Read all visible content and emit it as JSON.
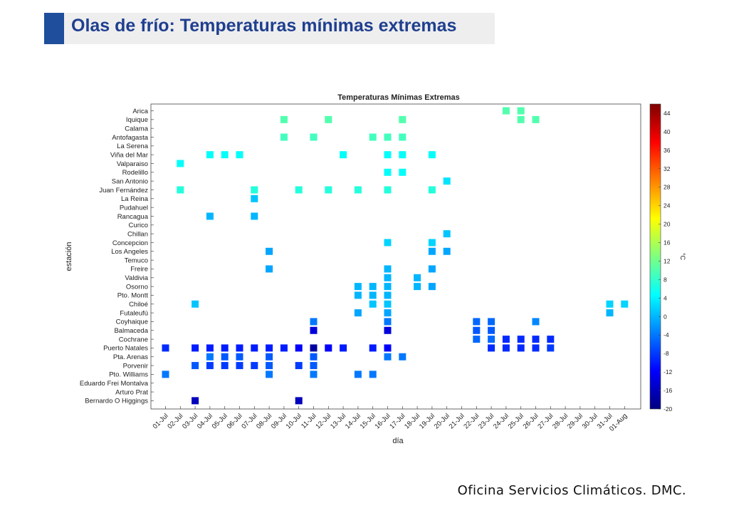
{
  "slide": {
    "title": "Olas de frío: Temperaturas mínimas extremas",
    "footer": "Oficina Servicios Climáticos. DMC."
  },
  "chart_data": {
    "type": "heatmap",
    "title": "Temperaturas Mínimas Extremas",
    "xlabel": "día",
    "ylabel": "estación",
    "colorbar_label": "°C",
    "colorbar_range": [
      -20,
      46
    ],
    "colorbar_ticks": [
      -20,
      -16,
      -12,
      -8,
      -4,
      0,
      4,
      8,
      12,
      16,
      20,
      24,
      28,
      32,
      36,
      40,
      44
    ],
    "x_categories": [
      "01-Jul",
      "02-Jul",
      "03-Jul",
      "04-Jul",
      "05-Jul",
      "06-Jul",
      "07-Jul",
      "08-Jul",
      "09-Jul",
      "10-Jul",
      "11-Jul",
      "12-Jul",
      "13-Jul",
      "14-Jul",
      "15-Jul",
      "16-Jul",
      "17-Jul",
      "18-Jul",
      "19-Jul",
      "20-Jul",
      "21-Jul",
      "22-Jul",
      "23-Jul",
      "24-Jul",
      "25-Jul",
      "26-Jul",
      "27-Jul",
      "28-Jul",
      "29-Jul",
      "30-Jul",
      "31-Jul",
      "01-Aug"
    ],
    "y_categories": [
      "Arica",
      "Iquique",
      "Calama",
      "Antofagasta",
      "La Serena",
      "Viña del Mar",
      "Valparaiso",
      "Rodelillo",
      "San Antonio",
      "Juan Fernández",
      "La Reina",
      "Pudahuel",
      "Rancagua",
      "Curico",
      "Chillan",
      "Concepcion",
      "Los Angeles",
      "Temuco",
      "Freire",
      "Valdivia",
      "Osorno",
      "Pto. Montt",
      "Chiloé",
      "Futaleufú",
      "Coyhaique",
      "Balmaceda",
      "Cochrane",
      "Puerto Natales",
      "Pta. Arenas",
      "Porvenir",
      "Pto. Williams",
      "Eduardo Frei Montalva",
      "Arturo Prat",
      "Bernardo O Higgings"
    ],
    "points": [
      {
        "station": "Arica",
        "day": "24-Jul",
        "value": 10
      },
      {
        "station": "Arica",
        "day": "25-Jul",
        "value": 10
      },
      {
        "station": "Iquique",
        "day": "09-Jul",
        "value": 10
      },
      {
        "station": "Iquique",
        "day": "12-Jul",
        "value": 10
      },
      {
        "station": "Iquique",
        "day": "17-Jul",
        "value": 10
      },
      {
        "station": "Iquique",
        "day": "25-Jul",
        "value": 10
      },
      {
        "station": "Iquique",
        "day": "26-Jul",
        "value": 10
      },
      {
        "station": "Antofagasta",
        "day": "09-Jul",
        "value": 9
      },
      {
        "station": "Antofagasta",
        "day": "11-Jul",
        "value": 9
      },
      {
        "station": "Antofagasta",
        "day": "15-Jul",
        "value": 9
      },
      {
        "station": "Antofagasta",
        "day": "16-Jul",
        "value": 9
      },
      {
        "station": "Antofagasta",
        "day": "17-Jul",
        "value": 9
      },
      {
        "station": "Viña del Mar",
        "day": "04-Jul",
        "value": 5
      },
      {
        "station": "Viña del Mar",
        "day": "05-Jul",
        "value": 5
      },
      {
        "station": "Viña del Mar",
        "day": "06-Jul",
        "value": 5
      },
      {
        "station": "Viña del Mar",
        "day": "13-Jul",
        "value": 5
      },
      {
        "station": "Viña del Mar",
        "day": "16-Jul",
        "value": 5
      },
      {
        "station": "Viña del Mar",
        "day": "17-Jul",
        "value": 5
      },
      {
        "station": "Viña del Mar",
        "day": "19-Jul",
        "value": 5
      },
      {
        "station": "Valparaiso",
        "day": "02-Jul",
        "value": 5
      },
      {
        "station": "Rodelillo",
        "day": "16-Jul",
        "value": 5
      },
      {
        "station": "Rodelillo",
        "day": "17-Jul",
        "value": 5
      },
      {
        "station": "San Antonio",
        "day": "20-Jul",
        "value": 3
      },
      {
        "station": "Juan Fernández",
        "day": "02-Jul",
        "value": 7
      },
      {
        "station": "Juan Fernández",
        "day": "07-Jul",
        "value": 7
      },
      {
        "station": "Juan Fernández",
        "day": "10-Jul",
        "value": 7
      },
      {
        "station": "Juan Fernández",
        "day": "12-Jul",
        "value": 7
      },
      {
        "station": "Juan Fernández",
        "day": "14-Jul",
        "value": 7
      },
      {
        "station": "Juan Fernández",
        "day": "16-Jul",
        "value": 7
      },
      {
        "station": "Juan Fernández",
        "day": "19-Jul",
        "value": 7
      },
      {
        "station": "La Reina",
        "day": "07-Jul",
        "value": 1
      },
      {
        "station": "Rancagua",
        "day": "04-Jul",
        "value": 0
      },
      {
        "station": "Rancagua",
        "day": "07-Jul",
        "value": 0
      },
      {
        "station": "Chillan",
        "day": "20-Jul",
        "value": 1
      },
      {
        "station": "Concepcion",
        "day": "16-Jul",
        "value": 2
      },
      {
        "station": "Concepcion",
        "day": "19-Jul",
        "value": 2
      },
      {
        "station": "Los Angeles",
        "day": "08-Jul",
        "value": -1
      },
      {
        "station": "Los Angeles",
        "day": "19-Jul",
        "value": -1
      },
      {
        "station": "Los Angeles",
        "day": "20-Jul",
        "value": -1
      },
      {
        "station": "Freire",
        "day": "08-Jul",
        "value": -1
      },
      {
        "station": "Freire",
        "day": "16-Jul",
        "value": 0
      },
      {
        "station": "Freire",
        "day": "19-Jul",
        "value": -1
      },
      {
        "station": "Valdivia",
        "day": "16-Jul",
        "value": 0
      },
      {
        "station": "Valdivia",
        "day": "18-Jul",
        "value": 0
      },
      {
        "station": "Osorno",
        "day": "14-Jul",
        "value": 0
      },
      {
        "station": "Osorno",
        "day": "15-Jul",
        "value": 0
      },
      {
        "station": "Osorno",
        "day": "16-Jul",
        "value": 0
      },
      {
        "station": "Osorno",
        "day": "18-Jul",
        "value": 0
      },
      {
        "station": "Osorno",
        "day": "19-Jul",
        "value": -1
      },
      {
        "station": "Pto. Montt",
        "day": "14-Jul",
        "value": 0
      },
      {
        "station": "Pto. Montt",
        "day": "15-Jul",
        "value": 0
      },
      {
        "station": "Pto. Montt",
        "day": "16-Jul",
        "value": 0
      },
      {
        "station": "Chiloé",
        "day": "03-Jul",
        "value": 1
      },
      {
        "station": "Chiloé",
        "day": "15-Jul",
        "value": 1
      },
      {
        "station": "Chiloé",
        "day": "16-Jul",
        "value": 1
      },
      {
        "station": "Chiloé",
        "day": "31-Jul",
        "value": 2
      },
      {
        "station": "Chiloé",
        "day": "01-Aug",
        "value": 2
      },
      {
        "station": "Futaleufú",
        "day": "14-Jul",
        "value": -1
      },
      {
        "station": "Futaleufú",
        "day": "16-Jul",
        "value": -1
      },
      {
        "station": "Futaleufú",
        "day": "31-Jul",
        "value": 0
      },
      {
        "station": "Coyhaique",
        "day": "11-Jul",
        "value": -4
      },
      {
        "station": "Coyhaique",
        "day": "16-Jul",
        "value": -4
      },
      {
        "station": "Coyhaique",
        "day": "22-Jul",
        "value": -5
      },
      {
        "station": "Coyhaique",
        "day": "23-Jul",
        "value": -5
      },
      {
        "station": "Coyhaique",
        "day": "26-Jul",
        "value": -3
      },
      {
        "station": "Balmaceda",
        "day": "11-Jul",
        "value": -14
      },
      {
        "station": "Balmaceda",
        "day": "16-Jul",
        "value": -14
      },
      {
        "station": "Balmaceda",
        "day": "22-Jul",
        "value": -6
      },
      {
        "station": "Balmaceda",
        "day": "23-Jul",
        "value": -6
      },
      {
        "station": "Cochrane",
        "day": "22-Jul",
        "value": -5
      },
      {
        "station": "Cochrane",
        "day": "23-Jul",
        "value": -5
      },
      {
        "station": "Cochrane",
        "day": "24-Jul",
        "value": -9
      },
      {
        "station": "Cochrane",
        "day": "25-Jul",
        "value": -9
      },
      {
        "station": "Cochrane",
        "day": "26-Jul",
        "value": -9
      },
      {
        "station": "Cochrane",
        "day": "27-Jul",
        "value": -9
      },
      {
        "station": "Puerto Natales",
        "day": "01-Jul",
        "value": -9
      },
      {
        "station": "Puerto Natales",
        "day": "03-Jul",
        "value": -10
      },
      {
        "station": "Puerto Natales",
        "day": "04-Jul",
        "value": -10
      },
      {
        "station": "Puerto Natales",
        "day": "05-Jul",
        "value": -10
      },
      {
        "station": "Puerto Natales",
        "day": "06-Jul",
        "value": -10
      },
      {
        "station": "Puerto Natales",
        "day": "07-Jul",
        "value": -10
      },
      {
        "station": "Puerto Natales",
        "day": "08-Jul",
        "value": -10
      },
      {
        "station": "Puerto Natales",
        "day": "09-Jul",
        "value": -10
      },
      {
        "station": "Puerto Natales",
        "day": "10-Jul",
        "value": -12
      },
      {
        "station": "Puerto Natales",
        "day": "11-Jul",
        "value": -18
      },
      {
        "station": "Puerto Natales",
        "day": "12-Jul",
        "value": -12
      },
      {
        "station": "Puerto Natales",
        "day": "13-Jul",
        "value": -10
      },
      {
        "station": "Puerto Natales",
        "day": "15-Jul",
        "value": -10
      },
      {
        "station": "Puerto Natales",
        "day": "16-Jul",
        "value": -12
      },
      {
        "station": "Puerto Natales",
        "day": "23-Jul",
        "value": -9
      },
      {
        "station": "Puerto Natales",
        "day": "24-Jul",
        "value": -9
      },
      {
        "station": "Puerto Natales",
        "day": "25-Jul",
        "value": -9
      },
      {
        "station": "Puerto Natales",
        "day": "26-Jul",
        "value": -9
      },
      {
        "station": "Puerto Natales",
        "day": "27-Jul",
        "value": -8
      },
      {
        "station": "Pta. Arenas",
        "day": "04-Jul",
        "value": -4
      },
      {
        "station": "Pta. Arenas",
        "day": "05-Jul",
        "value": -6
      },
      {
        "station": "Pta. Arenas",
        "day": "06-Jul",
        "value": -6
      },
      {
        "station": "Pta. Arenas",
        "day": "08-Jul",
        "value": -6
      },
      {
        "station": "Pta. Arenas",
        "day": "11-Jul",
        "value": -6
      },
      {
        "station": "Pta. Arenas",
        "day": "16-Jul",
        "value": -4
      },
      {
        "station": "Pta. Arenas",
        "day": "17-Jul",
        "value": -4
      },
      {
        "station": "Porvenir",
        "day": "03-Jul",
        "value": -6
      },
      {
        "station": "Porvenir",
        "day": "04-Jul",
        "value": -8
      },
      {
        "station": "Porvenir",
        "day": "05-Jul",
        "value": -8
      },
      {
        "station": "Porvenir",
        "day": "06-Jul",
        "value": -8
      },
      {
        "station": "Porvenir",
        "day": "07-Jul",
        "value": -8
      },
      {
        "station": "Porvenir",
        "day": "08-Jul",
        "value": -6
      },
      {
        "station": "Porvenir",
        "day": "10-Jul",
        "value": -8
      },
      {
        "station": "Porvenir",
        "day": "11-Jul",
        "value": -6
      },
      {
        "station": "Pto. Williams",
        "day": "01-Jul",
        "value": -4
      },
      {
        "station": "Pto. Williams",
        "day": "08-Jul",
        "value": -4
      },
      {
        "station": "Pto. Williams",
        "day": "11-Jul",
        "value": -4
      },
      {
        "station": "Pto. Williams",
        "day": "14-Jul",
        "value": -4
      },
      {
        "station": "Pto. Williams",
        "day": "15-Jul",
        "value": -4
      },
      {
        "station": "Bernardo O Higgings",
        "day": "03-Jul",
        "value": -16
      },
      {
        "station": "Bernardo O Higgings",
        "day": "10-Jul",
        "value": -16
      }
    ]
  }
}
